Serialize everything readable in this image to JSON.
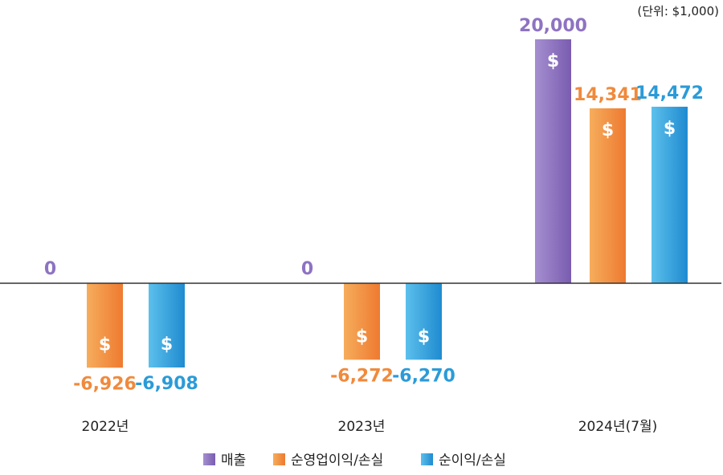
{
  "chart_data": {
    "type": "bar",
    "unit_label": "(단위: $1,000)",
    "categories": [
      "2022년",
      "2023년",
      "2024년(7월)"
    ],
    "series": [
      {
        "name": "매출",
        "values": [
          0,
          0,
          20000
        ],
        "labels": [
          "0",
          "0",
          "20,000"
        ],
        "color": "#8e73c2",
        "color_light": "#a58fd0",
        "color_dark": "#7a5cb0"
      },
      {
        "name": "순영업이익/손실",
        "values": [
          -6926,
          -6272,
          14341
        ],
        "labels": [
          "-6,926",
          "-6,272",
          "14,341"
        ],
        "color": "#f08a3c",
        "color_light": "#f6ad5c",
        "color_dark": "#ee7a30"
      },
      {
        "name": "순이익/손실",
        "values": [
          -6908,
          -6270,
          14472
        ],
        "labels": [
          "-6,908",
          "-6,270",
          "14,472"
        ],
        "color": "#2b9bd8",
        "color_light": "#5cc0ec",
        "color_dark": "#1f8bd0"
      }
    ],
    "bar_symbol": "$",
    "ylim": [
      -8000,
      20000
    ],
    "legend_position": "bottom",
    "grid": false
  }
}
